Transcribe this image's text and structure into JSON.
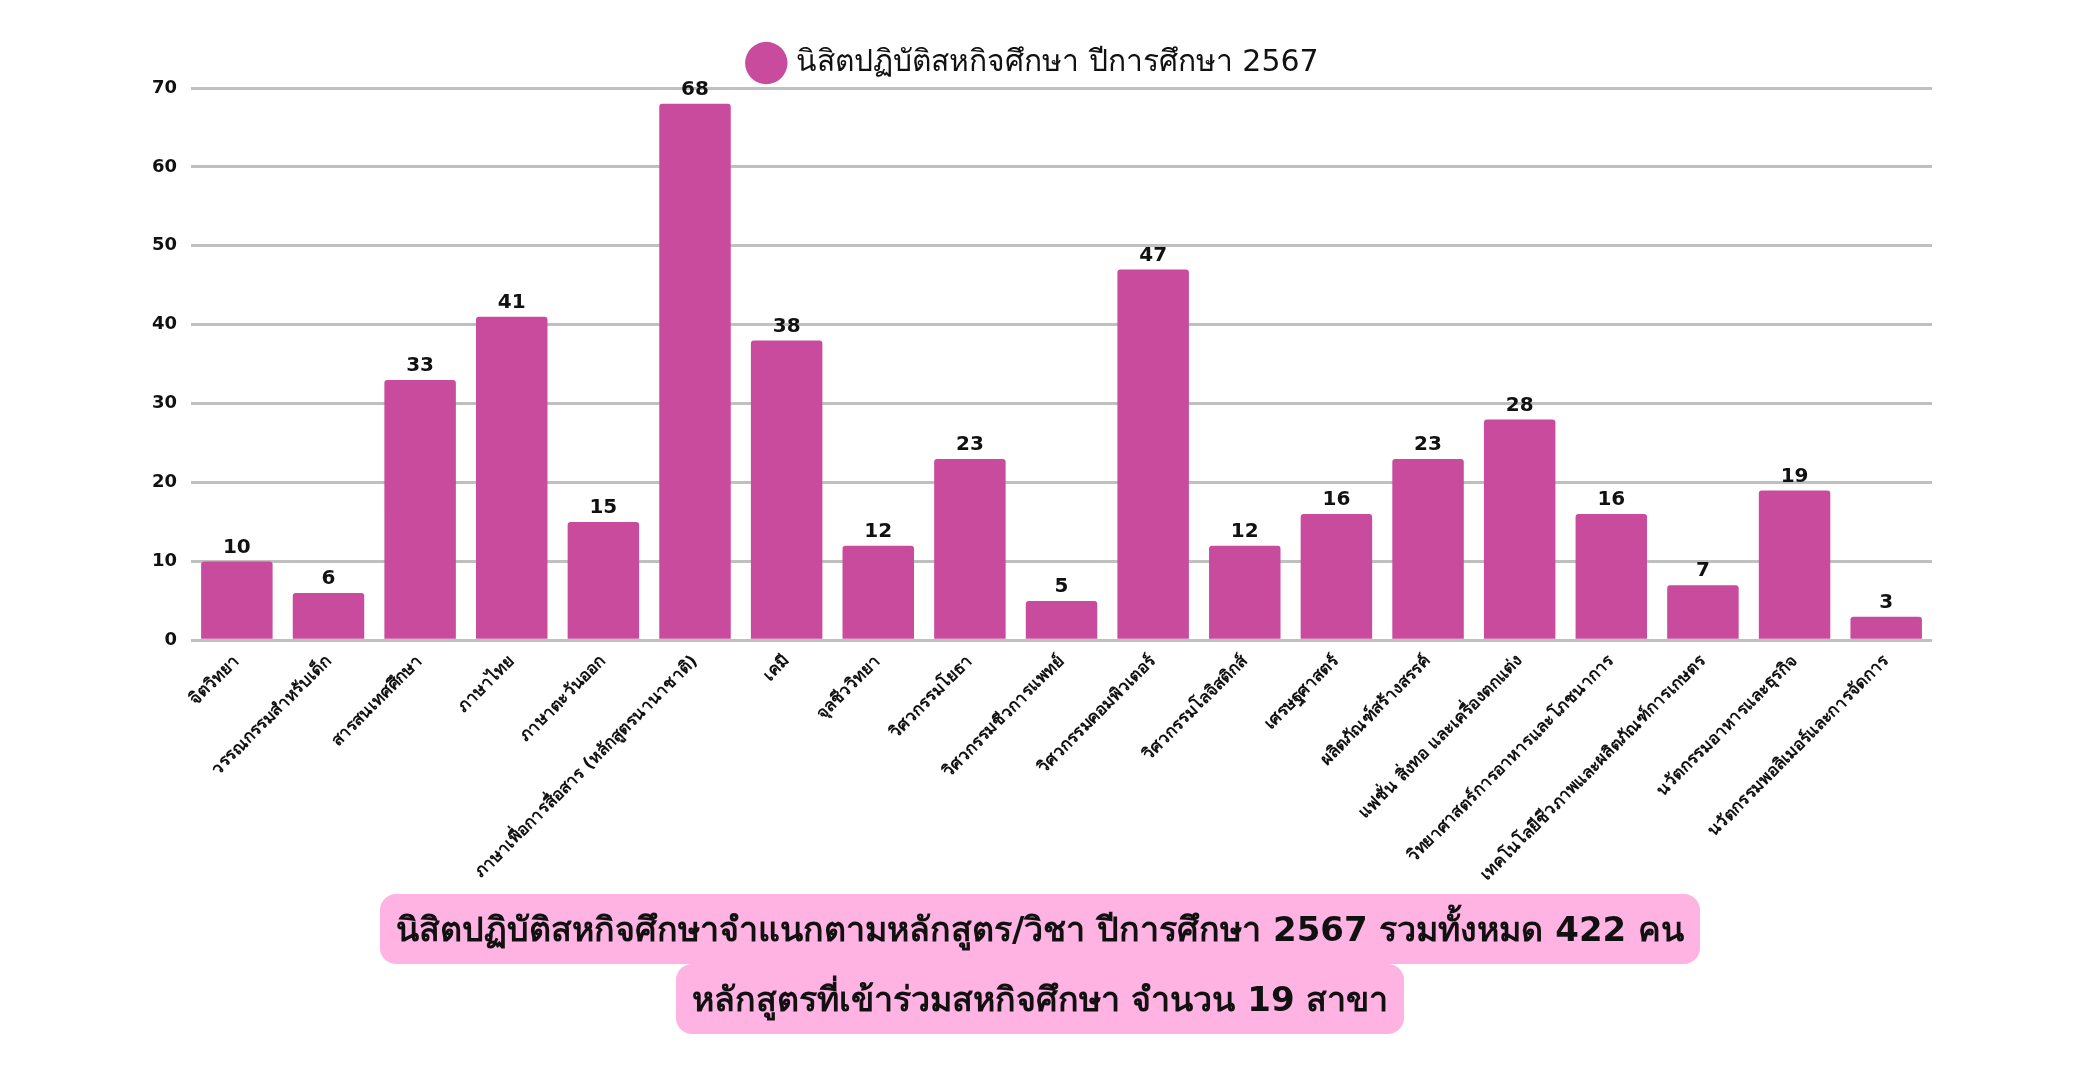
{
  "chart_data": {
    "type": "bar",
    "title": "นิสิตปฏิบัติสหกิจศึกษาจำแนกตามหลักสูตร/วิชา ปีการศึกษา 2567 รวมทั้งหมด 422 คน",
    "subtitle": "หลักสูตรที่เข้าร่วมสหกิจศึกษา จำนวน 19 สาขา",
    "categories": [
      "จิตวิทยา",
      "วรรณกรรมสำหรับเด็ก",
      "สารสนเทศศึกษา",
      "ภาษาไทย",
      "ภาษาตะวันออก",
      "ภาษาเพื่อการสื่อสาร (หลักสูตรนานาชาติ)",
      "เคมี",
      "จุลชีววิทยา",
      "วิศวกรรมโยธา",
      "วิศวกรรมชีวการแพทย์",
      "วิศวกรรมคอมพิวเตอร์",
      "วิศวกรรมโลจิสติกส์",
      "เศรษฐศาสตร์",
      "ผลิตภัณฑ์สร้างสรรค์",
      "แฟชั่น สิ่งทอ และเครื่องตกแต่ง",
      "วิทยาศาสตร์การอาหารและโภชนาการ",
      "เทคโนโลยีชีวภาพและผลิตภัณฑ์การเกษตร",
      "นวัตกรรมอาหารและธุรกิจ",
      "นวัตกรรมพอลิเมอร์และการจัดการ"
    ],
    "series": [
      {
        "name": "นิสิตปฏิบัติสหกิจศึกษา ปีการศึกษา 2567",
        "color": "#c84b9e",
        "values": [
          10,
          6,
          33,
          41,
          15,
          68,
          38,
          12,
          23,
          5,
          47,
          12,
          16,
          23,
          28,
          16,
          7,
          19,
          3
        ]
      }
    ],
    "ylim": [
      0,
      70
    ],
    "yticks": [
      0,
      10,
      20,
      30,
      40,
      50,
      60,
      70
    ],
    "grid": "y",
    "legend": "top",
    "data_labels": true
  }
}
